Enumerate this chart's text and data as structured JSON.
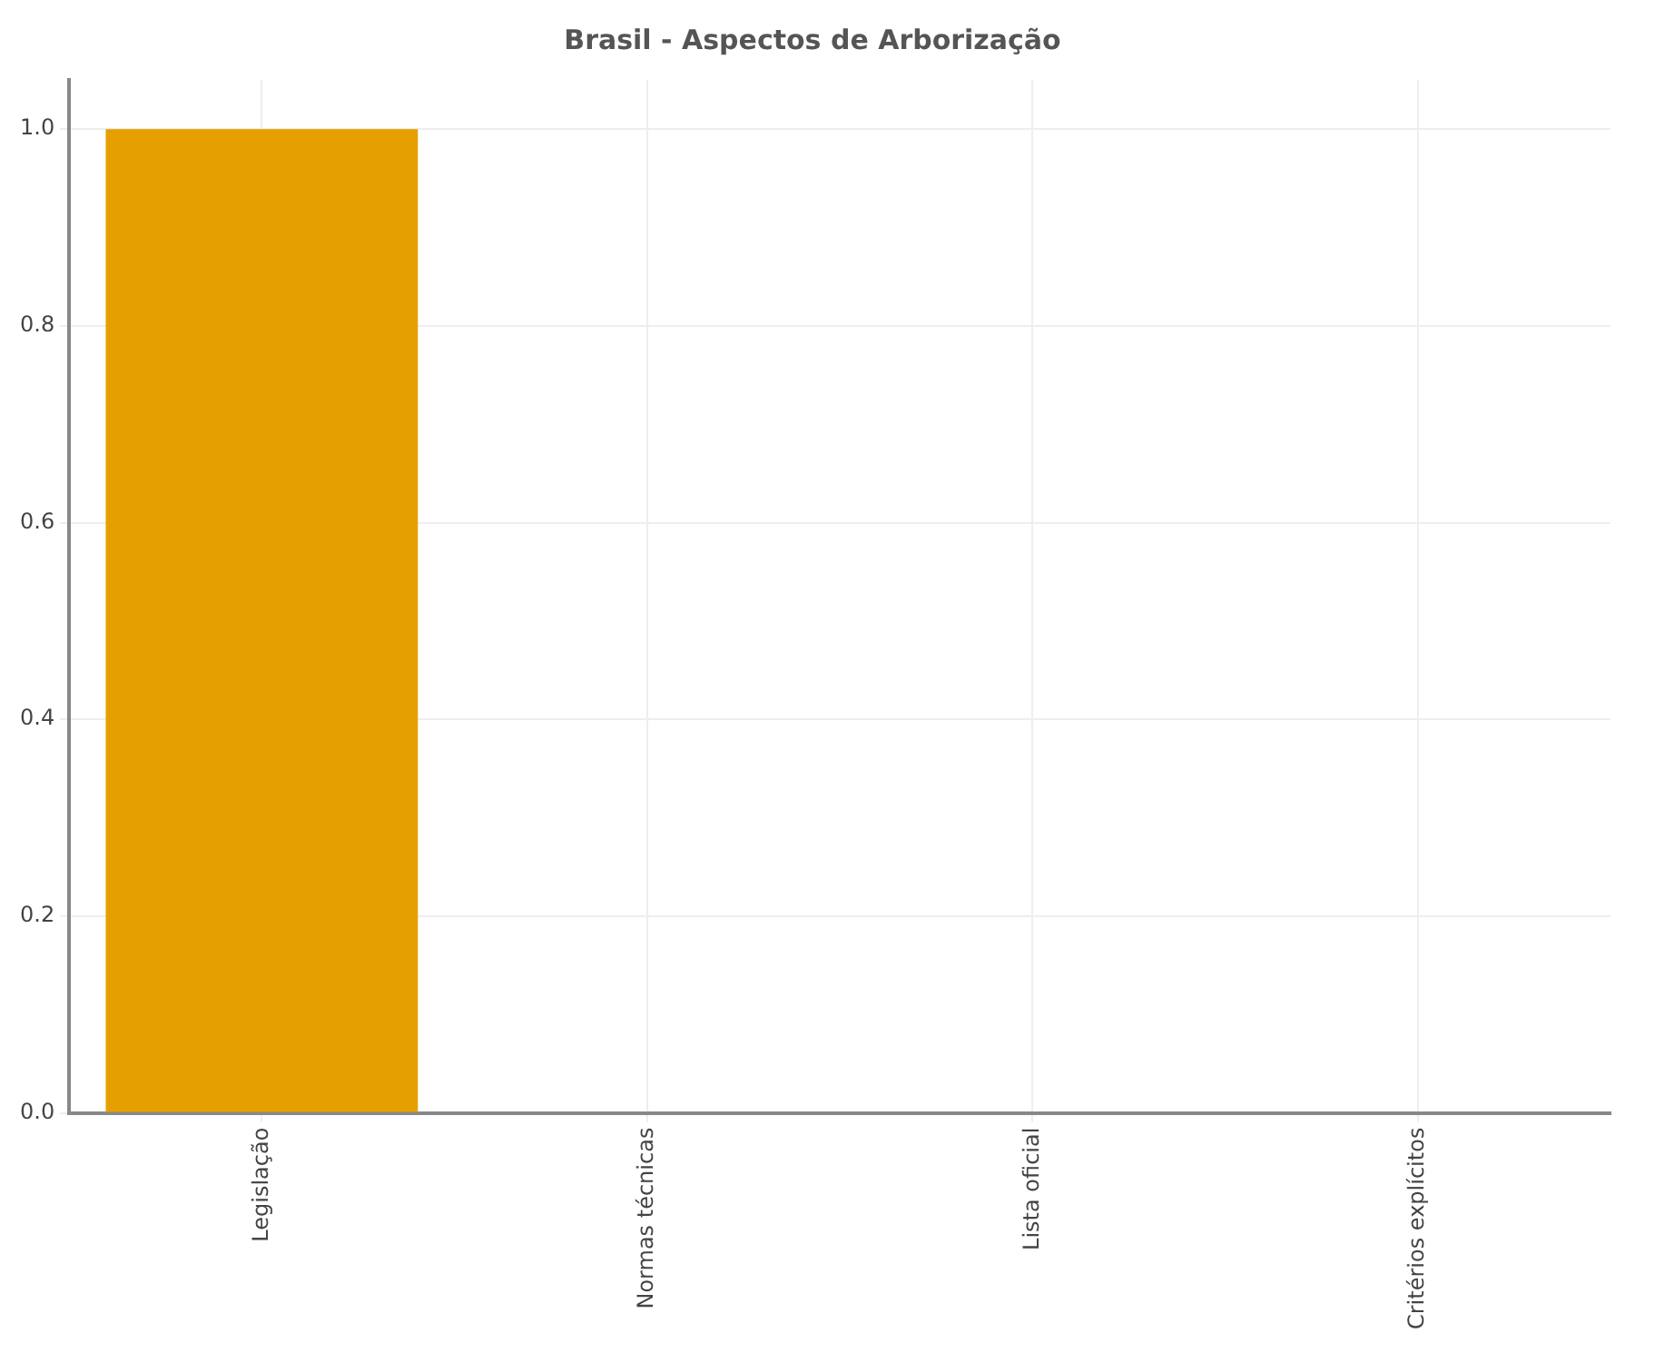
{
  "chart_data": {
    "type": "bar",
    "title": "Brasil - Aspectos de Arborização",
    "categories": [
      "Legislação",
      "Normas técnicas",
      "Lista oficial",
      "Critérios explícitos"
    ],
    "values": [
      1,
      0,
      0,
      0
    ],
    "color": "#e69f00",
    "ylim": [
      0,
      1.05
    ],
    "yticks": [
      {
        "value": 0,
        "label": "0.0"
      },
      {
        "value": 0.2,
        "label": "0.2"
      },
      {
        "value": 0.4,
        "label": "0.4"
      },
      {
        "value": 0.6,
        "label": "0.6"
      },
      {
        "value": 0.8,
        "label": "0.8"
      },
      {
        "value": 1,
        "label": "1.0"
      }
    ],
    "grid": true
  }
}
